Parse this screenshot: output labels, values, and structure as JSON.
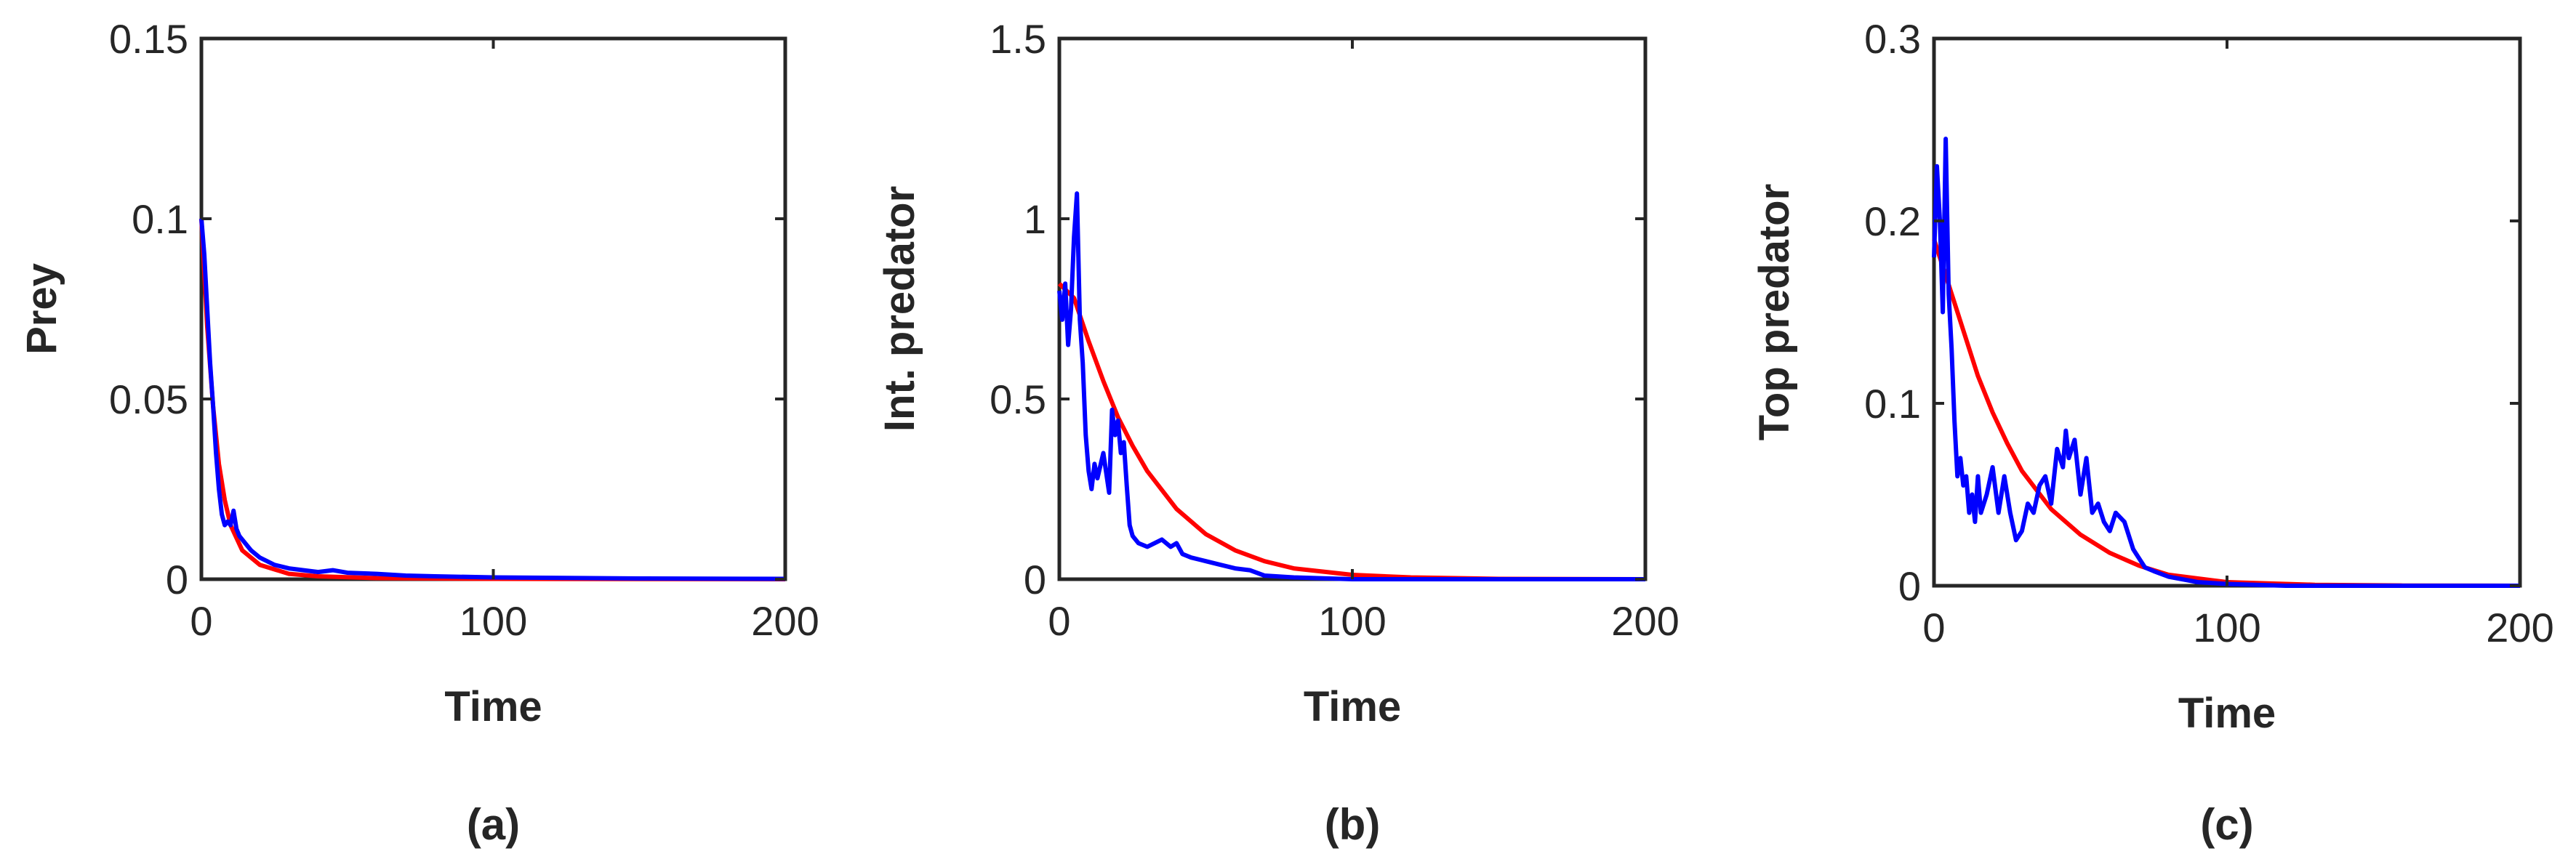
{
  "chart_data": [
    {
      "type": "line",
      "panel": "a",
      "caption": "(a)",
      "xlabel": "Time",
      "ylabel": "Prey",
      "xlim": [
        0,
        200
      ],
      "ylim": [
        0,
        0.15
      ],
      "xticks": [
        "0",
        "100",
        "200"
      ],
      "yticks": [
        "0",
        "0.05",
        "0.1",
        "0.15"
      ],
      "series": [
        {
          "color": "#ff0000",
          "x": [
            0,
            2,
            4,
            6,
            8,
            10,
            14,
            20,
            30,
            40,
            60,
            100,
            200
          ],
          "y": [
            0.1,
            0.07,
            0.048,
            0.032,
            0.022,
            0.015,
            0.008,
            0.004,
            0.0015,
            0.0008,
            0.0003,
            0.0001,
            0
          ]
        },
        {
          "color": "#0000ff",
          "x": [
            0,
            1,
            2,
            3,
            4,
            5,
            6,
            7,
            8,
            9,
            10,
            11,
            12,
            13,
            15,
            17,
            20,
            25,
            30,
            40,
            45,
            50,
            60,
            70,
            80,
            100,
            150,
            200
          ],
          "y": [
            0.1,
            0.09,
            0.075,
            0.06,
            0.048,
            0.035,
            0.025,
            0.018,
            0.015,
            0.016,
            0.015,
            0.019,
            0.014,
            0.012,
            0.01,
            0.008,
            0.006,
            0.004,
            0.003,
            0.002,
            0.0025,
            0.0018,
            0.0015,
            0.001,
            0.0008,
            0.0005,
            0.0002,
            0.0001
          ]
        }
      ]
    },
    {
      "type": "line",
      "panel": "b",
      "caption": "(b)",
      "xlabel": "Time",
      "ylabel": "Int. predator",
      "xlim": [
        0,
        200
      ],
      "ylim": [
        0,
        1.5
      ],
      "xticks": [
        "0",
        "100",
        "200"
      ],
      "yticks": [
        "0",
        "0.5",
        "1",
        "1.5"
      ],
      "series": [
        {
          "color": "#ff0000",
          "x": [
            0,
            5,
            10,
            15,
            20,
            25,
            30,
            40,
            50,
            60,
            70,
            80,
            100,
            120,
            150,
            200
          ],
          "y": [
            0.82,
            0.78,
            0.66,
            0.55,
            0.45,
            0.37,
            0.3,
            0.195,
            0.125,
            0.08,
            0.05,
            0.03,
            0.012,
            0.005,
            0.001,
            0
          ]
        },
        {
          "color": "#0000ff",
          "x": [
            0,
            1,
            2,
            3,
            4,
            5,
            6,
            7,
            8,
            9,
            10,
            11,
            12,
            13,
            15,
            17,
            18,
            19,
            20,
            21,
            22,
            23,
            24,
            25,
            27,
            30,
            35,
            38,
            40,
            42,
            45,
            50,
            55,
            60,
            65,
            70,
            80,
            100,
            200
          ],
          "y": [
            0.8,
            0.72,
            0.82,
            0.65,
            0.75,
            0.95,
            1.07,
            0.72,
            0.6,
            0.4,
            0.3,
            0.25,
            0.32,
            0.28,
            0.35,
            0.24,
            0.47,
            0.4,
            0.44,
            0.35,
            0.38,
            0.26,
            0.15,
            0.12,
            0.1,
            0.09,
            0.11,
            0.09,
            0.1,
            0.07,
            0.06,
            0.05,
            0.04,
            0.03,
            0.025,
            0.01,
            0.005,
            0,
            0
          ]
        }
      ]
    },
    {
      "type": "line",
      "panel": "c",
      "caption": "(c)",
      "xlabel": "Time",
      "ylabel": "Top predator",
      "xlim": [
        0,
        200
      ],
      "ylim": [
        0,
        0.3
      ],
      "xticks": [
        "0",
        "100",
        "200"
      ],
      "yticks": [
        "0",
        "0.1",
        "0.2",
        "0.3"
      ],
      "series": [
        {
          "color": "#ff0000",
          "x": [
            0,
            3,
            5,
            10,
            15,
            20,
            25,
            30,
            40,
            50,
            60,
            70,
            80,
            100,
            130,
            160,
            200
          ],
          "y": [
            0.19,
            0.175,
            0.165,
            0.14,
            0.115,
            0.095,
            0.078,
            0.063,
            0.042,
            0.028,
            0.018,
            0.011,
            0.006,
            0.002,
            0.0005,
            0.0001,
            0
          ]
        },
        {
          "color": "#0000ff",
          "x": [
            0,
            1,
            2,
            3,
            4,
            5,
            6,
            7,
            8,
            9,
            10,
            11,
            12,
            13,
            14,
            15,
            16,
            18,
            20,
            22,
            24,
            26,
            28,
            30,
            32,
            34,
            36,
            38,
            40,
            42,
            44,
            45,
            46,
            48,
            50,
            52,
            54,
            56,
            58,
            60,
            62,
            65,
            68,
            70,
            72,
            75,
            80,
            90,
            100,
            120,
            150,
            200
          ],
          "y": [
            0.18,
            0.23,
            0.2,
            0.15,
            0.245,
            0.16,
            0.13,
            0.09,
            0.06,
            0.07,
            0.055,
            0.06,
            0.04,
            0.05,
            0.035,
            0.06,
            0.04,
            0.05,
            0.065,
            0.04,
            0.06,
            0.04,
            0.025,
            0.03,
            0.045,
            0.04,
            0.055,
            0.06,
            0.045,
            0.075,
            0.065,
            0.085,
            0.07,
            0.08,
            0.05,
            0.07,
            0.04,
            0.045,
            0.035,
            0.03,
            0.04,
            0.035,
            0.02,
            0.015,
            0.01,
            0.008,
            0.005,
            0.002,
            0.001,
            0,
            0,
            0
          ]
        }
      ]
    }
  ]
}
